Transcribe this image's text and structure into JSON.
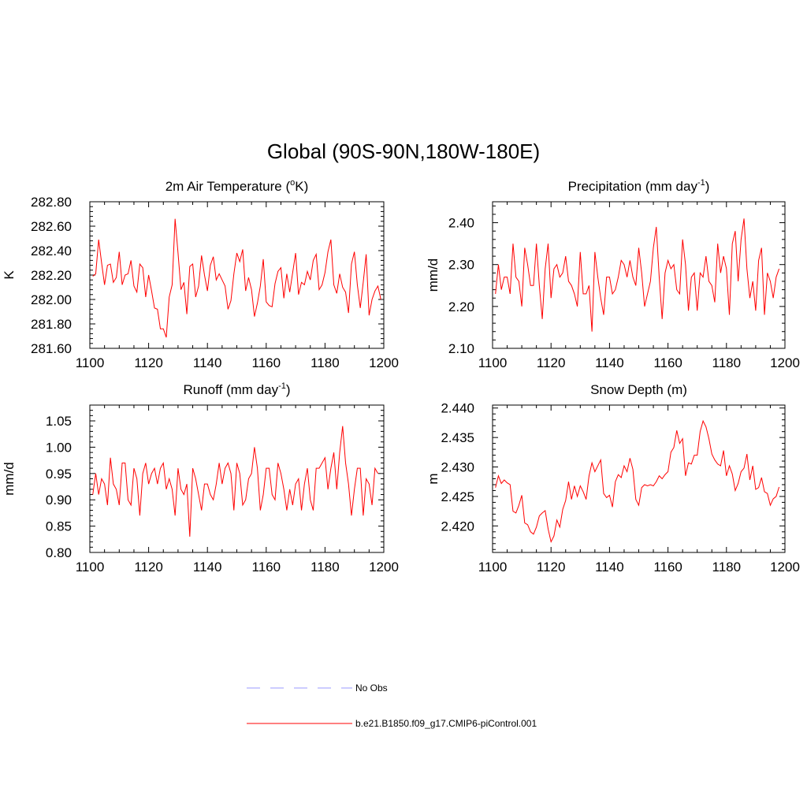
{
  "main_title": "Global (90S-90N,180W-180E)",
  "legend": [
    {
      "label": "No Obs",
      "color": "#9999ff",
      "style": "dashed"
    },
    {
      "label": "b.e21.B1850.f09_g17.CMIP6-piControl.001",
      "color": "#ff0000",
      "style": "solid"
    }
  ],
  "chart_data": [
    {
      "type": "line",
      "title": "2m Air Temperature (",
      "title_sup": "o",
      "title_post": "K)",
      "ylabel": "K",
      "xlabel": "",
      "xlim": [
        1100,
        1200
      ],
      "ylim": [
        281.6,
        282.8
      ],
      "xticks": [
        1100,
        1120,
        1140,
        1160,
        1180,
        1200
      ],
      "xtick_labels": [
        "1100",
        "1120",
        "1140",
        "1160",
        "1180",
        "1200"
      ],
      "yticks": [
        281.6,
        281.8,
        282.0,
        282.2,
        282.4,
        282.6,
        282.8
      ],
      "ytick_labels": [
        "281.60",
        "281.80",
        "282.00",
        "282.20",
        "282.40",
        "282.60",
        "282.80"
      ],
      "x_start": 1101,
      "series": [
        {
          "name": "b.e21.B1850.f09_g17.CMIP6-piControl.001",
          "color": "#ff0000",
          "values": [
            282.19,
            282.21,
            282.49,
            282.3,
            282.12,
            282.28,
            282.29,
            282.14,
            282.18,
            282.39,
            282.12,
            282.2,
            282.21,
            282.32,
            282.11,
            282.06,
            282.29,
            282.26,
            282.02,
            282.2,
            282.07,
            281.93,
            281.92,
            281.76,
            281.76,
            281.69,
            282.02,
            282.12,
            282.66,
            282.38,
            282.08,
            282.14,
            281.88,
            282.27,
            282.29,
            282.02,
            282.11,
            282.36,
            282.2,
            282.07,
            282.28,
            282.35,
            282.16,
            282.21,
            282.16,
            282.11,
            281.92,
            281.99,
            282.21,
            282.38,
            282.31,
            282.41,
            282.07,
            282.18,
            282.08,
            281.86,
            281.97,
            282.11,
            282.33,
            281.98,
            281.95,
            281.94,
            282.13,
            282.23,
            282.26,
            282.01,
            282.21,
            282.06,
            282.22,
            282.38,
            282.04,
            282.14,
            282.12,
            282.23,
            282.16,
            282.32,
            282.37,
            282.08,
            282.12,
            282.22,
            282.39,
            282.49,
            282.12,
            282.05,
            282.21,
            282.1,
            282.06,
            281.89,
            282.29,
            282.39,
            282.12,
            281.93,
            282.14,
            282.37,
            281.87,
            282.0,
            282.07,
            282.11,
            282.0
          ]
        }
      ]
    },
    {
      "type": "line",
      "title": "Precipitation (mm day",
      "title_sup": "-1",
      "title_post": ")",
      "ylabel": "mm/d",
      "xlabel": "",
      "xlim": [
        1100,
        1200
      ],
      "ylim": [
        2.1,
        2.45
      ],
      "xticks": [
        1100,
        1120,
        1140,
        1160,
        1180,
        1200
      ],
      "xtick_labels": [
        "1100",
        "1120",
        "1140",
        "1160",
        "1180",
        "1200"
      ],
      "yticks": [
        2.1,
        2.2,
        2.3,
        2.4
      ],
      "ytick_labels": [
        "2.10",
        "2.20",
        "2.30",
        "2.40"
      ],
      "x_start": 1101,
      "series": [
        {
          "name": "b.e21.B1850.f09_g17.CMIP6-piControl.001",
          "color": "#ff0000",
          "values": [
            2.23,
            2.3,
            2.24,
            2.27,
            2.27,
            2.23,
            2.35,
            2.27,
            2.26,
            2.2,
            2.34,
            2.3,
            2.25,
            2.25,
            2.35,
            2.25,
            2.17,
            2.29,
            2.35,
            2.22,
            2.29,
            2.3,
            2.27,
            2.28,
            2.32,
            2.26,
            2.25,
            2.23,
            2.2,
            2.33,
            2.23,
            2.23,
            2.25,
            2.14,
            2.33,
            2.27,
            2.22,
            2.18,
            2.27,
            2.27,
            2.23,
            2.24,
            2.27,
            2.31,
            2.3,
            2.27,
            2.31,
            2.27,
            2.25,
            2.34,
            2.28,
            2.2,
            2.23,
            2.26,
            2.34,
            2.39,
            2.27,
            2.17,
            2.28,
            2.31,
            2.29,
            2.3,
            2.24,
            2.23,
            2.36,
            2.3,
            2.19,
            2.27,
            2.28,
            2.19,
            2.28,
            2.27,
            2.32,
            2.26,
            2.25,
            2.21,
            2.35,
            2.28,
            2.32,
            2.29,
            2.18,
            2.35,
            2.38,
            2.26,
            2.36,
            2.41,
            2.29,
            2.22,
            2.26,
            2.19,
            2.31,
            2.34,
            2.18,
            2.28,
            2.26,
            2.22,
            2.27,
            2.29
          ]
        }
      ]
    },
    {
      "type": "line",
      "title": "Runoff (mm day",
      "title_sup": "-1",
      "title_post": ")",
      "ylabel": "mm/d",
      "xlabel": "",
      "xlim": [
        1100,
        1200
      ],
      "ylim": [
        0.8,
        1.08
      ],
      "xticks": [
        1100,
        1120,
        1140,
        1160,
        1180,
        1200
      ],
      "xtick_labels": [
        "1100",
        "1120",
        "1140",
        "1160",
        "1180",
        "1200"
      ],
      "yticks": [
        0.8,
        0.85,
        0.9,
        0.95,
        1.0,
        1.05
      ],
      "ytick_labels": [
        "0.80",
        "0.85",
        "0.90",
        "0.95",
        "1.00",
        "1.05"
      ],
      "x_start": 1101,
      "series": [
        {
          "name": "b.e21.B1850.f09_g17.CMIP6-piControl.001",
          "color": "#ff0000",
          "values": [
            0.91,
            0.95,
            0.91,
            0.94,
            0.93,
            0.89,
            0.98,
            0.93,
            0.92,
            0.89,
            0.97,
            0.97,
            0.9,
            0.89,
            0.96,
            0.94,
            0.87,
            0.95,
            0.97,
            0.93,
            0.95,
            0.96,
            0.93,
            0.96,
            0.97,
            0.92,
            0.94,
            0.92,
            0.87,
            0.96,
            0.92,
            0.91,
            0.93,
            0.83,
            0.96,
            0.94,
            0.91,
            0.88,
            0.93,
            0.93,
            0.91,
            0.9,
            0.93,
            0.97,
            0.93,
            0.96,
            0.97,
            0.95,
            0.88,
            0.97,
            0.95,
            0.89,
            0.9,
            0.94,
            0.95,
            1.0,
            0.96,
            0.88,
            0.91,
            0.96,
            0.96,
            0.91,
            0.9,
            0.97,
            0.95,
            0.92,
            0.88,
            0.92,
            0.89,
            0.93,
            0.94,
            0.88,
            0.93,
            0.96,
            0.9,
            0.88,
            0.96,
            0.96,
            0.97,
            0.98,
            0.92,
            0.96,
            0.99,
            0.92,
            0.99,
            1.04,
            0.97,
            0.93,
            0.87,
            0.92,
            0.96,
            0.96,
            0.87,
            0.94,
            0.93,
            0.89,
            0.96,
            0.95
          ]
        }
      ]
    },
    {
      "type": "line",
      "title": "Snow Depth (m)",
      "title_sup": "",
      "title_post": "",
      "ylabel": "m",
      "xlabel": "",
      "xlim": [
        1100,
        1200
      ],
      "ylim": [
        2.4155,
        2.4405
      ],
      "xticks": [
        1100,
        1120,
        1140,
        1160,
        1180,
        1200
      ],
      "xtick_labels": [
        "1100",
        "1120",
        "1140",
        "1160",
        "1180",
        "1200"
      ],
      "yticks": [
        2.42,
        2.425,
        2.43,
        2.435,
        2.44
      ],
      "ytick_labels": [
        "2.420",
        "2.425",
        "2.430",
        "2.435",
        "2.440"
      ],
      "x_start": 1101,
      "series": [
        {
          "name": "b.e21.B1850.f09_g17.CMIP6-piControl.001",
          "color": "#ff0000",
          "values": [
            2.4265,
            2.4285,
            2.4272,
            2.4278,
            2.4273,
            2.427,
            2.4225,
            2.4222,
            2.4235,
            2.4252,
            2.4205,
            2.4202,
            2.419,
            2.4186,
            2.4198,
            2.4217,
            2.4222,
            2.4226,
            2.4195,
            2.4173,
            2.4183,
            2.421,
            2.4198,
            2.4228,
            2.4243,
            2.4275,
            2.4245,
            2.4268,
            2.425,
            2.4268,
            2.4258,
            2.4245,
            2.4285,
            2.4307,
            2.4292,
            2.4302,
            2.4312,
            2.4255,
            2.4248,
            2.4252,
            2.4232,
            2.4275,
            2.4287,
            2.4282,
            2.4302,
            2.4292,
            2.4315,
            2.4296,
            2.4245,
            2.4235,
            2.4265,
            2.427,
            2.4268,
            2.427,
            2.4268,
            2.4275,
            2.4285,
            2.428,
            2.4287,
            2.4292,
            2.4325,
            2.4333,
            2.4362,
            2.434,
            2.4348,
            2.4285,
            2.4307,
            2.4305,
            2.432,
            2.432,
            2.436,
            2.4378,
            2.4368,
            2.4348,
            2.4322,
            2.4312,
            2.4305,
            2.4302,
            2.4328,
            2.4285,
            2.4302,
            2.4288,
            2.426,
            2.4272,
            2.4292,
            2.4298,
            2.4322,
            2.4278,
            2.4302,
            2.4262,
            2.4265,
            2.4282,
            2.4258,
            2.4255,
            2.4235,
            2.4246,
            2.425,
            2.4266
          ]
        }
      ]
    }
  ]
}
